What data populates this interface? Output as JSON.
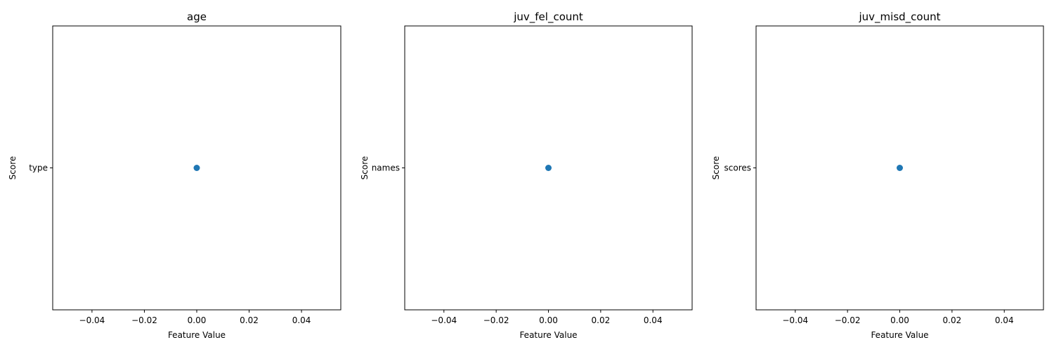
{
  "chart_data": [
    {
      "type": "scatter",
      "title": "age",
      "xlabel": "Feature Value",
      "ylabel": "Score",
      "xlim": [
        -0.055,
        0.055
      ],
      "xticks": [
        -0.04,
        -0.02,
        0.0,
        0.02,
        0.04
      ],
      "xtick_labels": [
        "−0.04",
        "−0.02",
        "0.00",
        "0.02",
        "0.04"
      ],
      "y_categories": [
        "type"
      ],
      "points": [
        {
          "x": 0.0,
          "y": "type"
        }
      ],
      "grid": false,
      "color": "#1f77b4"
    },
    {
      "type": "scatter",
      "title": "juv_fel_count",
      "xlabel": "Feature Value",
      "ylabel": "Score",
      "xlim": [
        -0.055,
        0.055
      ],
      "xticks": [
        -0.04,
        -0.02,
        0.0,
        0.02,
        0.04
      ],
      "xtick_labels": [
        "−0.04",
        "−0.02",
        "0.00",
        "0.02",
        "0.04"
      ],
      "y_categories": [
        "names"
      ],
      "points": [
        {
          "x": 0.0,
          "y": "names"
        }
      ],
      "grid": false,
      "color": "#1f77b4"
    },
    {
      "type": "scatter",
      "title": "juv_misd_count",
      "xlabel": "Feature Value",
      "ylabel": "Score",
      "xlim": [
        -0.055,
        0.055
      ],
      "xticks": [
        -0.04,
        -0.02,
        0.0,
        0.02,
        0.04
      ],
      "xtick_labels": [
        "−0.04",
        "−0.02",
        "0.00",
        "0.02",
        "0.04"
      ],
      "y_categories": [
        "scores"
      ],
      "points": [
        {
          "x": 0.0,
          "y": "scores"
        }
      ],
      "grid": false,
      "color": "#1f77b4"
    }
  ]
}
